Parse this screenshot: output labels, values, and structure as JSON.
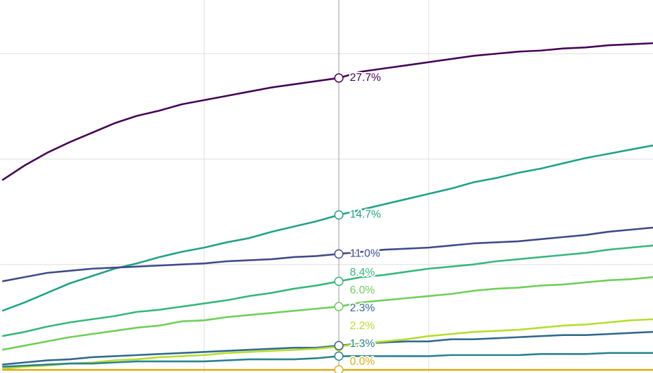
{
  "chart_data": {
    "type": "line",
    "x": [
      0.1,
      0.2,
      0.3,
      0.4,
      0.5,
      0.6,
      0.7,
      0.8,
      0.9,
      1.0,
      1.1,
      1.2,
      1.3,
      1.4,
      1.5,
      1.6,
      1.7,
      1.8,
      1.9,
      2.0,
      2.1,
      2.2,
      2.3,
      2.4,
      2.5,
      2.6,
      2.7,
      2.8,
      2.9,
      3.0
    ],
    "xlim": [
      0.09,
      3.0
    ],
    "xticks": [
      1,
      2
    ],
    "ylim": [
      -0.3,
      35.1
    ],
    "yticks": [
      10,
      20,
      30
    ],
    "grid": true,
    "series": [
      {
        "color": "#440154",
        "values": [
          18.0,
          19.4,
          20.6,
          21.6,
          22.5,
          23.4,
          24.1,
          24.6,
          25.2,
          25.6,
          26.0,
          26.4,
          26.8,
          27.1,
          27.4,
          27.7,
          28.3,
          28.6,
          28.9,
          29.2,
          29.5,
          29.8,
          30.0,
          30.2,
          30.3,
          30.5,
          30.6,
          30.8,
          30.9,
          31.0
        ],
        "value_labels": [
          null,
          null,
          null,
          null,
          null,
          null,
          null,
          null,
          null,
          null,
          null,
          null,
          null,
          null,
          null,
          "27.7%",
          null,
          null,
          null,
          null,
          null,
          null,
          null,
          null,
          null,
          null,
          null,
          null,
          null,
          null
        ]
      },
      {
        "color": "#1fa187",
        "values": [
          5.6,
          6.4,
          7.3,
          8.2,
          8.9,
          9.6,
          10.1,
          10.7,
          11.2,
          11.6,
          12.1,
          12.5,
          13.1,
          13.6,
          14.1,
          14.7,
          15.2,
          15.7,
          16.2,
          16.7,
          17.2,
          17.8,
          18.2,
          18.7,
          19.1,
          19.6,
          20.1,
          20.5,
          20.9,
          21.3
        ],
        "value_labels": [
          null,
          null,
          null,
          null,
          null,
          null,
          null,
          null,
          null,
          null,
          null,
          null,
          null,
          null,
          null,
          "14.7%",
          null,
          null,
          null,
          null,
          null,
          null,
          null,
          null,
          null,
          null,
          null,
          null,
          null,
          null
        ]
      },
      {
        "color": "#3e4a89",
        "values": [
          8.4,
          8.8,
          9.2,
          9.4,
          9.6,
          9.7,
          9.8,
          9.9,
          10.0,
          10.1,
          10.3,
          10.4,
          10.5,
          10.7,
          10.8,
          11.0,
          11.2,
          11.4,
          11.5,
          11.6,
          11.8,
          12.0,
          12.1,
          12.2,
          12.4,
          12.6,
          12.8,
          13.1,
          13.3,
          13.5
        ],
        "value_labels": [
          null,
          null,
          null,
          null,
          null,
          null,
          null,
          null,
          null,
          null,
          null,
          null,
          null,
          null,
          null,
          "11.0%",
          null,
          null,
          null,
          null,
          null,
          null,
          null,
          null,
          null,
          null,
          null,
          null,
          null,
          null
        ]
      },
      {
        "color": "#35b779",
        "values": [
          3.2,
          3.6,
          4.1,
          4.5,
          4.8,
          5.1,
          5.5,
          5.7,
          6.0,
          6.3,
          6.6,
          7.0,
          7.3,
          7.7,
          8.0,
          8.4,
          8.8,
          9.0,
          9.3,
          9.6,
          9.8,
          10.0,
          10.3,
          10.5,
          10.7,
          10.9,
          11.1,
          11.4,
          11.6,
          11.8
        ],
        "value_labels": [
          null,
          null,
          null,
          null,
          null,
          null,
          null,
          null,
          null,
          null,
          null,
          null,
          null,
          null,
          null,
          "8.4%",
          null,
          null,
          null,
          null,
          null,
          null,
          null,
          null,
          null,
          null,
          null,
          null,
          null,
          null
        ]
      },
      {
        "color": "#6ece58",
        "values": [
          1.9,
          2.3,
          2.7,
          3.1,
          3.4,
          3.7,
          4.0,
          4.2,
          4.6,
          4.7,
          5.0,
          5.2,
          5.4,
          5.6,
          5.8,
          6.0,
          6.4,
          6.6,
          6.8,
          7.0,
          7.2,
          7.5,
          7.7,
          7.8,
          8.0,
          8.1,
          8.3,
          8.5,
          8.6,
          8.8
        ],
        "value_labels": [
          null,
          null,
          null,
          null,
          null,
          null,
          null,
          null,
          null,
          null,
          null,
          null,
          null,
          null,
          null,
          "6.0%",
          null,
          null,
          null,
          null,
          null,
          null,
          null,
          null,
          null,
          null,
          null,
          null,
          null,
          null
        ]
      },
      {
        "color": "#31688e",
        "values": [
          0.5,
          0.7,
          0.9,
          1.0,
          1.2,
          1.3,
          1.4,
          1.5,
          1.6,
          1.7,
          1.8,
          1.9,
          2.0,
          2.1,
          2.1,
          2.3,
          2.5,
          2.6,
          2.7,
          2.7,
          2.9,
          2.9,
          3.0,
          3.1,
          3.2,
          3.3,
          3.3,
          3.4,
          3.5,
          3.6
        ],
        "value_labels": [
          null,
          null,
          null,
          null,
          null,
          null,
          null,
          null,
          null,
          null,
          null,
          null,
          null,
          null,
          null,
          "2.3%",
          null,
          null,
          null,
          null,
          null,
          null,
          null,
          null,
          null,
          null,
          null,
          null,
          null,
          null
        ]
      },
      {
        "color": "#b5de2b",
        "values": [
          0.1,
          0.3,
          0.4,
          0.6,
          0.7,
          0.9,
          1.0,
          1.2,
          1.3,
          1.4,
          1.6,
          1.7,
          1.8,
          1.9,
          2.0,
          2.2,
          2.5,
          2.7,
          2.9,
          3.2,
          3.4,
          3.6,
          3.7,
          3.8,
          4.0,
          4.2,
          4.3,
          4.5,
          4.7,
          4.8
        ],
        "value_labels": [
          null,
          null,
          null,
          null,
          null,
          null,
          null,
          null,
          null,
          null,
          null,
          null,
          null,
          null,
          null,
          "2.2%",
          null,
          null,
          null,
          null,
          null,
          null,
          null,
          null,
          null,
          null,
          null,
          null,
          null,
          null
        ]
      },
      {
        "color": "#26828e",
        "values": [
          0.3,
          0.4,
          0.5,
          0.6,
          0.6,
          0.7,
          0.8,
          0.8,
          0.8,
          0.8,
          0.9,
          1.0,
          1.0,
          1.0,
          1.1,
          1.3,
          1.3,
          1.3,
          1.3,
          1.3,
          1.4,
          1.4,
          1.4,
          1.4,
          1.5,
          1.5,
          1.5,
          1.6,
          1.6,
          1.6
        ],
        "value_labels": [
          null,
          null,
          null,
          null,
          null,
          null,
          null,
          null,
          null,
          null,
          null,
          null,
          null,
          null,
          null,
          "1.3%",
          null,
          null,
          null,
          null,
          null,
          null,
          null,
          null,
          null,
          null,
          null,
          null,
          null,
          null
        ]
      },
      {
        "color": "#e0ae16",
        "values": [
          0.0,
          0.0,
          0.0,
          0.0,
          0.0,
          0.0,
          0.0,
          0.0,
          0.0,
          0.0,
          0.0,
          0.0,
          0.0,
          0.0,
          0.0,
          0.0,
          0.0,
          0.0,
          0.0,
          0.0,
          0.0,
          0.0,
          0.0,
          0.0,
          0.0,
          0.0,
          0.0,
          0.0,
          0.0,
          0.0
        ],
        "value_labels": [
          null,
          null,
          null,
          null,
          null,
          null,
          null,
          null,
          null,
          null,
          null,
          null,
          null,
          null,
          null,
          "0.0%",
          null,
          null,
          null,
          null,
          null,
          null,
          null,
          null,
          null,
          null,
          null,
          null,
          null,
          null
        ]
      }
    ]
  }
}
